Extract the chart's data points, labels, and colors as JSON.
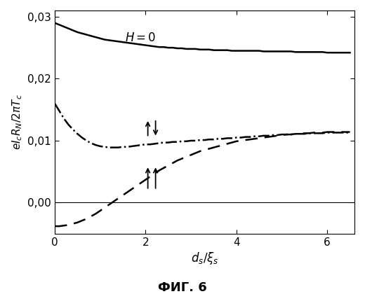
{
  "xlim": [
    0,
    6.6
  ],
  "ylim": [
    -0.005,
    0.031
  ],
  "yticks": [
    0.0,
    0.01,
    0.02,
    0.03
  ],
  "ytick_labels": [
    "0,00",
    "0,01",
    "0,02",
    "0,03"
  ],
  "xticks": [
    0,
    2,
    4,
    6
  ],
  "xtick_labels": [
    "0",
    "2",
    "4",
    "6"
  ],
  "background": "#ffffff",
  "x": [
    0.0,
    0.1,
    0.2,
    0.3,
    0.4,
    0.5,
    0.6,
    0.7,
    0.8,
    0.9,
    1.0,
    1.1,
    1.2,
    1.3,
    1.4,
    1.5,
    1.6,
    1.7,
    1.8,
    1.9,
    2.0,
    2.1,
    2.2,
    2.3,
    2.4,
    2.5,
    2.6,
    2.7,
    2.8,
    2.9,
    3.0,
    3.1,
    3.2,
    3.3,
    3.4,
    3.5,
    3.6,
    3.7,
    3.8,
    3.9,
    4.0,
    4.1,
    4.2,
    4.3,
    4.4,
    4.5,
    4.6,
    4.7,
    4.8,
    4.9,
    5.0,
    5.1,
    5.2,
    5.3,
    5.4,
    5.5,
    5.6,
    5.7,
    5.8,
    5.9,
    6.0,
    6.1,
    6.2,
    6.3,
    6.4,
    6.5
  ],
  "y_solid": [
    0.029,
    0.0287,
    0.0284,
    0.0281,
    0.0278,
    0.0275,
    0.0273,
    0.0271,
    0.0269,
    0.0267,
    0.0265,
    0.0263,
    0.0262,
    0.0261,
    0.026,
    0.0259,
    0.0258,
    0.0257,
    0.0256,
    0.0255,
    0.0254,
    0.0253,
    0.0252,
    0.0251,
    0.0251,
    0.025,
    0.025,
    0.0249,
    0.0249,
    0.0248,
    0.0248,
    0.0248,
    0.0247,
    0.0247,
    0.0247,
    0.0246,
    0.0246,
    0.0246,
    0.0246,
    0.0245,
    0.0245,
    0.0245,
    0.0245,
    0.0245,
    0.0245,
    0.0245,
    0.0244,
    0.0244,
    0.0244,
    0.0244,
    0.0244,
    0.0244,
    0.0244,
    0.0243,
    0.0243,
    0.0243,
    0.0243,
    0.0243,
    0.0243,
    0.0243,
    0.0242,
    0.0242,
    0.0242,
    0.0242,
    0.0242,
    0.0242
  ],
  "y_dashdot": [
    0.016,
    0.0148,
    0.0136,
    0.0126,
    0.0118,
    0.0111,
    0.0105,
    0.01,
    0.0096,
    0.0093,
    0.0091,
    0.009,
    0.0089,
    0.0089,
    0.0089,
    0.009,
    0.009,
    0.0091,
    0.0092,
    0.0093,
    0.0094,
    0.0094,
    0.0095,
    0.0096,
    0.0097,
    0.0097,
    0.0098,
    0.0098,
    0.0099,
    0.0099,
    0.01,
    0.01,
    0.0101,
    0.0101,
    0.0102,
    0.0102,
    0.0103,
    0.0103,
    0.0104,
    0.0104,
    0.0105,
    0.0105,
    0.0106,
    0.0106,
    0.0107,
    0.0107,
    0.0108,
    0.0108,
    0.0109,
    0.0109,
    0.011,
    0.011,
    0.011,
    0.0111,
    0.0111,
    0.0111,
    0.0112,
    0.0112,
    0.0112,
    0.0112,
    0.0113,
    0.0113,
    0.0113,
    0.0113,
    0.0113,
    0.0113
  ],
  "y_dashed": [
    -0.0038,
    -0.0038,
    -0.0037,
    -0.0036,
    -0.0034,
    -0.0032,
    -0.0029,
    -0.0026,
    -0.0022,
    -0.0018,
    -0.0013,
    -0.0008,
    -0.0003,
    0.0002,
    0.0007,
    0.0012,
    0.0017,
    0.0022,
    0.0027,
    0.0032,
    0.0037,
    0.0042,
    0.0047,
    0.0052,
    0.0056,
    0.006,
    0.0064,
    0.0068,
    0.0071,
    0.0074,
    0.0077,
    0.008,
    0.0083,
    0.0085,
    0.0087,
    0.0089,
    0.0091,
    0.0093,
    0.0095,
    0.0097,
    0.0099,
    0.01,
    0.0101,
    0.0102,
    0.0103,
    0.0104,
    0.0105,
    0.0106,
    0.0107,
    0.0108,
    0.0109,
    0.011,
    0.011,
    0.0111,
    0.0111,
    0.0112,
    0.0112,
    0.0113,
    0.0113,
    0.0113,
    0.0114,
    0.0114,
    0.0114,
    0.0114,
    0.0114,
    0.0114
  ]
}
